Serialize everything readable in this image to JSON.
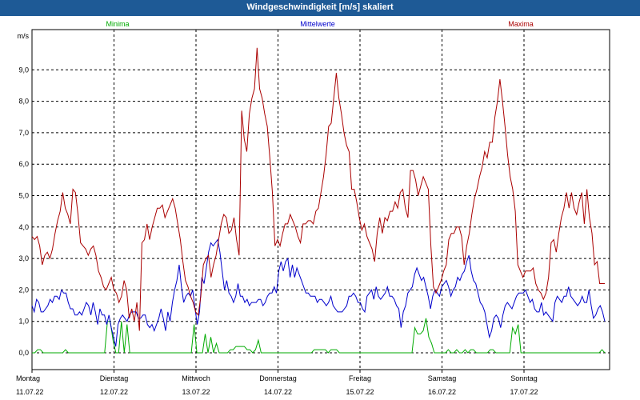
{
  "window": {
    "title": "Windgeschwindigkeit [m/s] skaliert"
  },
  "colors": {
    "titlebar": "#1e5a96",
    "min": "#00aa00",
    "mean": "#0000cc",
    "max": "#aa0000",
    "grid": "#000000"
  },
  "chart_data": {
    "type": "line",
    "title": "Windgeschwindigkeit [m/s] skaliert",
    "ylabel": "m/s",
    "ylim": [
      -0.5,
      10.2
    ],
    "yticks": [
      "0,0",
      "1,0",
      "2,0",
      "3,0",
      "4,0",
      "5,0",
      "6,0",
      "7,0",
      "8,0",
      "9,0"
    ],
    "grid": true,
    "legend_position": "top",
    "days": [
      {
        "name": "Montag",
        "date": "11.07.22"
      },
      {
        "name": "Dienstag",
        "date": "12.07.22"
      },
      {
        "name": "Mittwoch",
        "date": "13.07.22"
      },
      {
        "name": "Donnerstag",
        "date": "14.07.22"
      },
      {
        "name": "Freitag",
        "date": "15.07.22"
      },
      {
        "name": "Samstag",
        "date": "16.07.22"
      },
      {
        "name": "Sonntag",
        "date": "17.07.22"
      }
    ],
    "series": [
      {
        "name": "Minima",
        "color": "#00aa00",
        "values": [
          0,
          0,
          0.1,
          0.1,
          0,
          0,
          0,
          0,
          0,
          0,
          0,
          0,
          0.1,
          0,
          0,
          0,
          0,
          0,
          0,
          0,
          0,
          0,
          0,
          0,
          0,
          0,
          0,
          1,
          1,
          0.4,
          0,
          0,
          1,
          0,
          0.9,
          0,
          0,
          0,
          0,
          0,
          0,
          0,
          0,
          0,
          0,
          0,
          0,
          0,
          0,
          0,
          0,
          0,
          0,
          0,
          0,
          0,
          0,
          0,
          0.9,
          0,
          0,
          0,
          0.6,
          0,
          0.5,
          0,
          0.3,
          0,
          0,
          0,
          0,
          0.1,
          0.1,
          0.2,
          0.2,
          0.2,
          0.2,
          0.1,
          0.1,
          0,
          0.1,
          0.4,
          0,
          0,
          0,
          0,
          0,
          0,
          0,
          0,
          0,
          0,
          0,
          0,
          0,
          0,
          0,
          0,
          0,
          0,
          0,
          0.1,
          0.1,
          0.1,
          0.1,
          0.1,
          0,
          0.1,
          0.1,
          0.1,
          0,
          0,
          0,
          0,
          0,
          0,
          0,
          0,
          0,
          0,
          0,
          0,
          0,
          0,
          0,
          0,
          0,
          0,
          0,
          0,
          0,
          0,
          0,
          0,
          0,
          0,
          0,
          0.8,
          0.6,
          0.6,
          0.7,
          1.1,
          0.5,
          0.3,
          0,
          0,
          0,
          0,
          0,
          0.1,
          0,
          0,
          0.1,
          0,
          0,
          0.1,
          0,
          0.1,
          0.1,
          0,
          0,
          0,
          0,
          0,
          0.1,
          0.1,
          0,
          0,
          0,
          0,
          0,
          0,
          0.8,
          0.6,
          0.9,
          0,
          0,
          0,
          0,
          0,
          0,
          0,
          0,
          0,
          0,
          0,
          0,
          0,
          0,
          0,
          0,
          0,
          0,
          0,
          0,
          0,
          0,
          0,
          0,
          0,
          0,
          0,
          0,
          0,
          0.1,
          0
        ]
      },
      {
        "name": "Mittelwerte",
        "color": "#0000cc",
        "values": [
          1.5,
          1.3,
          1.7,
          1.6,
          1.3,
          1.3,
          1.4,
          1.5,
          1.7,
          1.6,
          1.8,
          1.8,
          1.7,
          2,
          1.9,
          1.9,
          1.6,
          1.4,
          1.4,
          1.2,
          1.2,
          1.3,
          1.2,
          1.4,
          1.6,
          1.5,
          1.2,
          1.6,
          1.3,
          0.9,
          1.4,
          1.2,
          1.2,
          0.9,
          1.2,
          0.8,
          0.5,
          0.2,
          0.9,
          1.1,
          1.2,
          1.1,
          1,
          1.2,
          1.3,
          1.3,
          1.3,
          1.1,
          1.1,
          1.2,
          1.2,
          0.9,
          0.8,
          0.9,
          0.7,
          0.9,
          1.1,
          1.4,
          1.1,
          0.7,
          1.3,
          1,
          1.6,
          2,
          2.3,
          2.8,
          2.1,
          1.6,
          1.8,
          1.9,
          1.8,
          2,
          1.4,
          0.9,
          1.3,
          2.4,
          2.2,
          2.7,
          3.2,
          3.5,
          3.4,
          3.5,
          3.6,
          3.2,
          2.6,
          2,
          2.3,
          1.9,
          1.8,
          1.6,
          1.8,
          2.2,
          1.8,
          1.8,
          1.6,
          1.7,
          1.5,
          1.6,
          1.6,
          1.6,
          1.7,
          1.7,
          1.5,
          1.6,
          1.8,
          1.9,
          1.9,
          2.1,
          1.9,
          2.6,
          2.9,
          2.6,
          2.9,
          3,
          2.4,
          2.8,
          2.4,
          2.7,
          2.5,
          2.3,
          2.1,
          1.9,
          1.9,
          1.8,
          1.8,
          1.8,
          1.6,
          1.7,
          1.7,
          1.6,
          1.5,
          1.6,
          1.8,
          1.5,
          1.4,
          1.3,
          1.3,
          1.3,
          1.4,
          1.5,
          1.8,
          1.8,
          1.9,
          1.8,
          1.6,
          1.6,
          1.4,
          1.3,
          1.8,
          1.9,
          2,
          1.7,
          2.1,
          1.8,
          1.7,
          1.8,
          1.9,
          2.1,
          1.8,
          1.8,
          1.7,
          1.5,
          1.4,
          0.8,
          1.3,
          1.5,
          1.9,
          2,
          2.1,
          2.5,
          2.7,
          2.5,
          2.3,
          2.4,
          2.1,
          1.8,
          1.4,
          1.8,
          2,
          1.9,
          1.8,
          2.1,
          2.2,
          2.3,
          2.1,
          1.8,
          2,
          2.1,
          2.4,
          2.3,
          2.5,
          2.6,
          2.9,
          3.1,
          2.6,
          2.3,
          2.2,
          1.9,
          1.6,
          1.5,
          1.3,
          0.9,
          0.5,
          0.7,
          1.1,
          1.2,
          1.1,
          0.8,
          1.2,
          1.5,
          1.6,
          1.5,
          1.4,
          1.6,
          1.8,
          1.9,
          1.9,
          1.9,
          2,
          1.8,
          1.6,
          1.7,
          1.4,
          1.3,
          1.3,
          1.6,
          1.2,
          1.3,
          1.2,
          1.1,
          1,
          1.6,
          1.8,
          1.7,
          1.6,
          1.8,
          1.8,
          2.1,
          1.8,
          1.7,
          1.6,
          1.5,
          1.6,
          1.8,
          1.6,
          1.6,
          2,
          1.5,
          1.1,
          1.2,
          1.4,
          1.5,
          1.3,
          1
        ]
      },
      {
        "name": "Maxima",
        "color": "#aa0000",
        "values": [
          3.7,
          3.6,
          3.7,
          3.4,
          2.8,
          3.1,
          3.2,
          3,
          3.3,
          3.8,
          4.2,
          4.5,
          5.1,
          4.6,
          4.4,
          4.1,
          5.2,
          5.1,
          4.4,
          3.5,
          3.4,
          3.3,
          3.1,
          3.3,
          3.4,
          3.1,
          2.6,
          2.4,
          2.1,
          2,
          2.2,
          2.4,
          2,
          1.9,
          1.6,
          1.8,
          2.3,
          2,
          1.1,
          1.4,
          1,
          1.6,
          0.7,
          3.5,
          3.6,
          4.1,
          3.6,
          4,
          4.3,
          4.6,
          4.6,
          4.7,
          4.3,
          4.5,
          4.7,
          4.9,
          4.6,
          4.1,
          3.6,
          2.9,
          2.3,
          2.1,
          1.8,
          1.6,
          1.3,
          1.2,
          1.8,
          2.8,
          3,
          3.1,
          2.4,
          2.8,
          3.1,
          3.6,
          4.1,
          4.4,
          4.3,
          3.8,
          3.9,
          4.3,
          3.6,
          3.1,
          7.7,
          6.8,
          6.4,
          7.6,
          8.1,
          8.4,
          9.7,
          8.4,
          8.1,
          7.6,
          7.2,
          6.2,
          5.1,
          3.4,
          3.6,
          3.4,
          3.8,
          4.1,
          4.1,
          4.4,
          4.2,
          4,
          3.7,
          3.5,
          4.1,
          4.1,
          4.2,
          4.2,
          4.1,
          4.5,
          4.6,
          5.1,
          5.6,
          6.3,
          7.2,
          7.3,
          8.1,
          8.9,
          8.1,
          7.6,
          7,
          6.6,
          6.4,
          5.2,
          5.2,
          4.8,
          4.3,
          3.9,
          4.1,
          3.7,
          3.5,
          3.3,
          2.9,
          3.8,
          4.3,
          3.8,
          4.3,
          4.2,
          4.5,
          4.5,
          4.8,
          4.6,
          5.1,
          5.2,
          4.6,
          4.3,
          5.8,
          5.8,
          5.5,
          5,
          5.3,
          5.6,
          5.4,
          5.2,
          3.4,
          2.1,
          1.9,
          2.1,
          2.3,
          2.6,
          2.8,
          3.6,
          3.8,
          3.8,
          4,
          4,
          3.7,
          2.8,
          3.4,
          3.8,
          4.4,
          4.9,
          5.2,
          5.6,
          5.9,
          6.4,
          6.2,
          6.7,
          6.7,
          7.5,
          8,
          8.7,
          8,
          7.2,
          6.3,
          5.6,
          5.2,
          4.5,
          2.8,
          2.6,
          2.4,
          2.6,
          2.6,
          2.6,
          2.7,
          2.2,
          2,
          1.9,
          1.7,
          1.9,
          2.4,
          3.5,
          3.6,
          3.2,
          3.8,
          4.3,
          4.6,
          5.1,
          4.6,
          5.1,
          4.6,
          4.4,
          4.8,
          5.1,
          4.1,
          5.2,
          4.3,
          3.8,
          2.8,
          2.9,
          2.2,
          2.2,
          2.2
        ]
      }
    ]
  }
}
